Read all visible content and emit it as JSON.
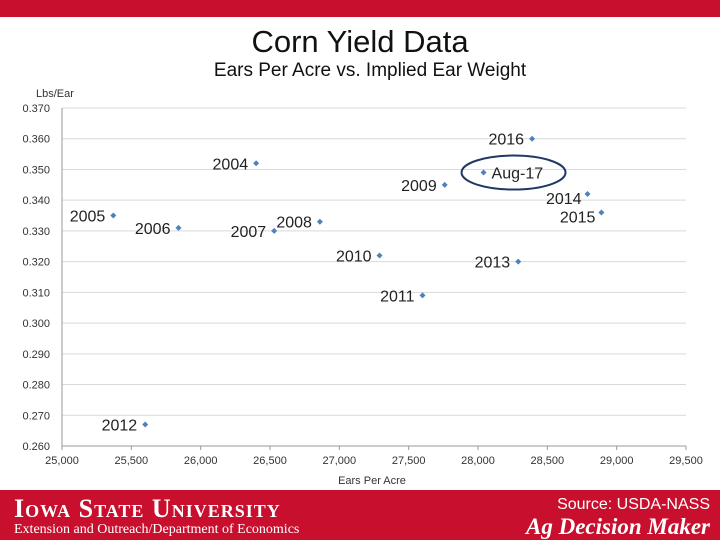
{
  "slide": {
    "title": "Corn Yield Data",
    "source": "Source: USDA-NASS",
    "university": "Iowa State University",
    "department": "Extension and Outreach/Department of Economics",
    "program": "Ag Decision Maker"
  },
  "colors": {
    "brand": "#c8102e",
    "marker": "#4f81bd",
    "grid": "#d9d9d9",
    "circle": "#1f3864"
  },
  "chart_data": {
    "type": "scatter",
    "title": "Ears Per Acre vs. Implied Ear Weight",
    "xlabel": "Ears Per Acre",
    "ylabel": "Lbs/Ear",
    "xlim": [
      25000,
      29500
    ],
    "ylim": [
      0.26,
      0.37
    ],
    "xticks": [
      25000,
      25500,
      26000,
      26500,
      27000,
      27500,
      28000,
      28500,
      29000,
      29500
    ],
    "xtick_labels": [
      "25,000",
      "25,500",
      "26,000",
      "26,500",
      "27,000",
      "27,500",
      "28,000",
      "28,500",
      "29,000",
      "29,500"
    ],
    "yticks": [
      0.26,
      0.27,
      0.28,
      0.29,
      0.3,
      0.31,
      0.32,
      0.33,
      0.34,
      0.35,
      0.36,
      0.37
    ],
    "ytick_labels": [
      "0.260",
      "0.270",
      "0.280",
      "0.290",
      "0.300",
      "0.310",
      "0.320",
      "0.330",
      "0.340",
      "0.350",
      "0.360",
      "0.370"
    ],
    "grid": true,
    "highlighted": "Aug-17",
    "points": [
      {
        "label": "2004",
        "x": 26400,
        "y": 0.352,
        "label_side": "left"
      },
      {
        "label": "2005",
        "x": 25370,
        "y": 0.335,
        "label_side": "left"
      },
      {
        "label": "2006",
        "x": 25840,
        "y": 0.331,
        "label_side": "left"
      },
      {
        "label": "2007",
        "x": 26530,
        "y": 0.33,
        "label_side": "left"
      },
      {
        "label": "2008",
        "x": 26860,
        "y": 0.333,
        "label_side": "left"
      },
      {
        "label": "2009",
        "x": 27760,
        "y": 0.345,
        "label_side": "left"
      },
      {
        "label": "2010",
        "x": 27290,
        "y": 0.322,
        "label_side": "left"
      },
      {
        "label": "2011",
        "x": 27600,
        "y": 0.309,
        "label_side": "left"
      },
      {
        "label": "2012",
        "x": 25600,
        "y": 0.267,
        "label_side": "left"
      },
      {
        "label": "2013",
        "x": 28290,
        "y": 0.32,
        "label_side": "left"
      },
      {
        "label": "2014",
        "x": 28790,
        "y": 0.342,
        "label_side": "left_below"
      },
      {
        "label": "2015",
        "x": 28890,
        "y": 0.336,
        "label_side": "left_below"
      },
      {
        "label": "2016",
        "x": 28390,
        "y": 0.36,
        "label_side": "left"
      },
      {
        "label": "Aug-17",
        "x": 28040,
        "y": 0.349,
        "label_side": "right"
      }
    ]
  }
}
